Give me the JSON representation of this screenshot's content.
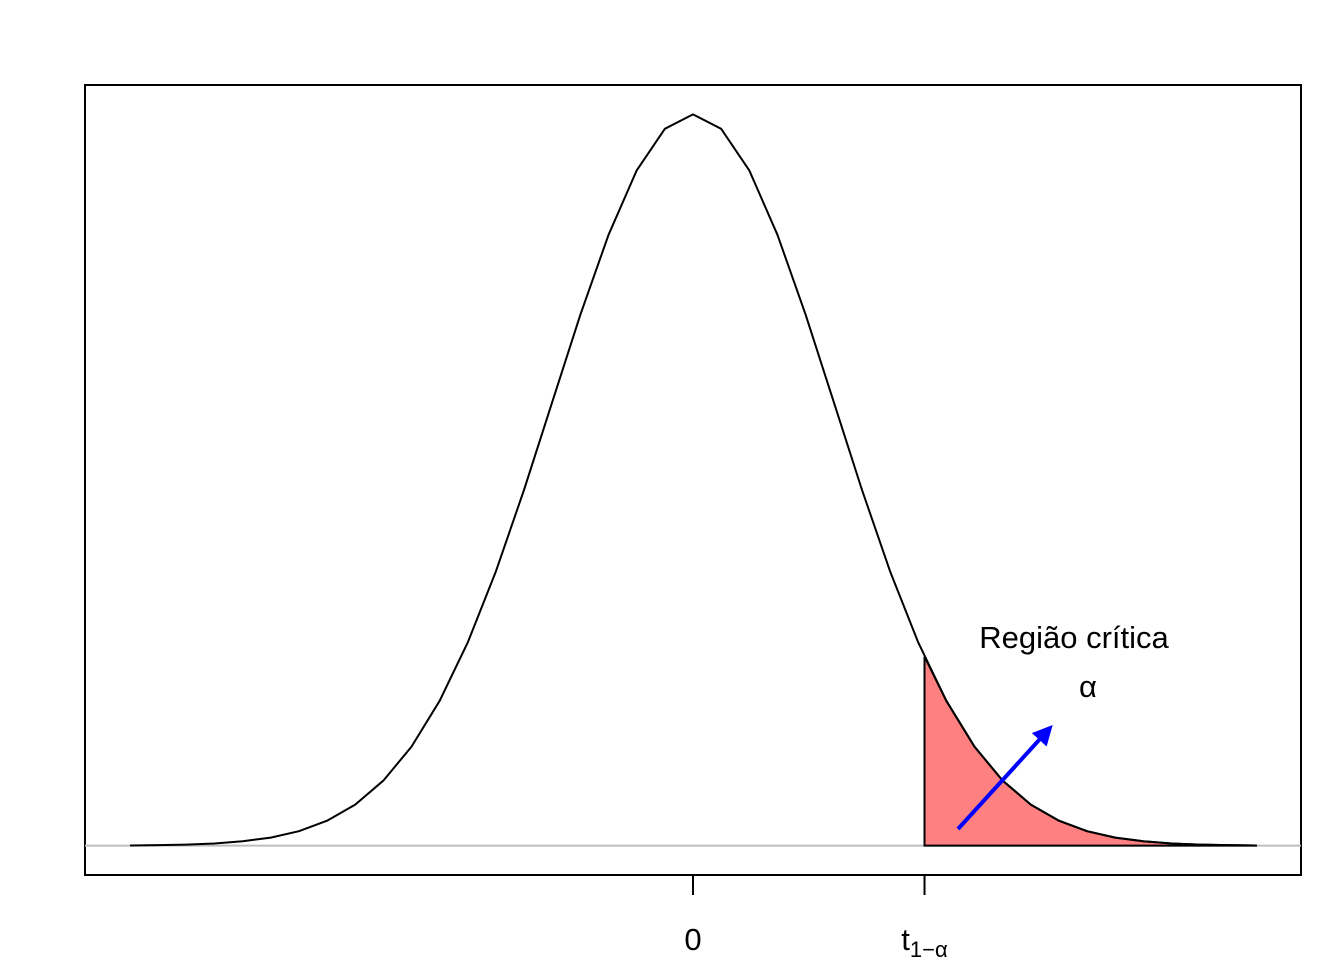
{
  "chart_data": {
    "type": "density",
    "annotation": "Região crítica",
    "annotation_symbol": "α",
    "x": [
      -4.0,
      -3.8,
      -3.6,
      -3.4,
      -3.2,
      -3.0,
      -2.8,
      -2.6,
      -2.4,
      -2.2,
      -2.0,
      -1.8,
      -1.6,
      -1.4,
      -1.2,
      -1.0,
      -0.8,
      -0.6,
      -0.4,
      -0.2,
      0.0,
      0.2,
      0.4,
      0.6,
      0.8,
      1.0,
      1.2,
      1.4,
      1.6,
      1.8,
      2.0,
      2.2,
      2.4,
      2.6,
      2.8,
      3.0,
      3.2,
      3.4,
      3.6,
      3.8,
      4.0
    ],
    "values": [
      0.0001,
      0.0003,
      0.0006,
      0.0012,
      0.0024,
      0.0044,
      0.0079,
      0.0136,
      0.0224,
      0.0355,
      0.054,
      0.079,
      0.1109,
      0.1497,
      0.1942,
      0.242,
      0.2897,
      0.3332,
      0.3683,
      0.391,
      0.3989,
      0.391,
      0.3683,
      0.3332,
      0.2897,
      0.242,
      0.1942,
      0.1497,
      0.1109,
      0.079,
      0.054,
      0.0355,
      0.0224,
      0.0136,
      0.0079,
      0.0044,
      0.0024,
      0.0012,
      0.0006,
      0.0003,
      0.0001
    ],
    "region": {
      "color": "#ff8080",
      "x": [
        1.645,
        1.8,
        2.0,
        2.2,
        2.4,
        2.6,
        2.8,
        3.0,
        3.2,
        3.4,
        3.6,
        3.8,
        4.0
      ],
      "values": [
        0.1031,
        0.079,
        0.054,
        0.0355,
        0.0224,
        0.0136,
        0.0079,
        0.0044,
        0.0024,
        0.0012,
        0.0006,
        0.0003,
        0.0001
      ]
    },
    "hline": 0,
    "xlim": [
      -4.32,
      4.32
    ],
    "ylim": [
      -0.016,
      0.4149
    ],
    "xticks": [
      0,
      {
        "value": 1.645,
        "label": "t",
        "subscript": "1−α"
      }
    ]
  }
}
